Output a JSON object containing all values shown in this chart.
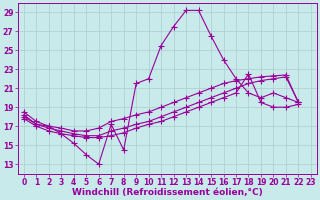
{
  "background_color": "#c8eaea",
  "grid_color": "#aacccc",
  "line_color": "#990099",
  "marker": "+",
  "markersize": 4,
  "linewidth": 0.8,
  "xlabel": "Windchill (Refroidissement éolien,°C)",
  "xlabel_fontsize": 6.5,
  "tick_fontsize": 5.5,
  "xlim": [
    -0.5,
    23.5
  ],
  "ylim": [
    12.0,
    30.0
  ],
  "yticks": [
    13,
    15,
    17,
    19,
    21,
    23,
    25,
    27,
    29
  ],
  "xticks": [
    0,
    1,
    2,
    3,
    4,
    5,
    6,
    7,
    8,
    9,
    10,
    11,
    12,
    13,
    14,
    15,
    16,
    17,
    18,
    19,
    20,
    21,
    22,
    23
  ],
  "s1_x": [
    0,
    1,
    2,
    3,
    4,
    5,
    6,
    7,
    8,
    9,
    10,
    11,
    12,
    13,
    14,
    15,
    16,
    17,
    18,
    19,
    20,
    21,
    22
  ],
  "s1_y": [
    18.5,
    17.5,
    17.0,
    16.2,
    15.2,
    14.0,
    13.0,
    17.2,
    14.5,
    21.5,
    22.0,
    25.5,
    27.5,
    29.2,
    29.2,
    26.5,
    24.0,
    22.0,
    20.5,
    20.0,
    20.5,
    20.0,
    19.5
  ],
  "s2_x": [
    0,
    1,
    2,
    3,
    4,
    5,
    6,
    7,
    8,
    9,
    10,
    11,
    12,
    13,
    14,
    15,
    16,
    17,
    18,
    19,
    20,
    21,
    22
  ],
  "s2_y": [
    18.2,
    17.2,
    17.0,
    16.8,
    16.5,
    16.5,
    16.8,
    17.5,
    17.8,
    18.2,
    18.5,
    19.0,
    19.5,
    20.0,
    20.5,
    21.0,
    21.5,
    21.8,
    22.0,
    22.2,
    22.3,
    22.4,
    19.5
  ],
  "s3_x": [
    0,
    1,
    2,
    3,
    4,
    5,
    6,
    7,
    8,
    9,
    10,
    11,
    12,
    13,
    14,
    15,
    16,
    17,
    18,
    19,
    20,
    21,
    22
  ],
  "s3_y": [
    18.0,
    17.2,
    16.8,
    16.5,
    16.2,
    16.0,
    16.0,
    16.5,
    16.8,
    17.2,
    17.5,
    18.0,
    18.5,
    19.0,
    19.5,
    20.0,
    20.5,
    21.0,
    21.5,
    21.8,
    22.0,
    22.2,
    19.5
  ],
  "s4_x": [
    0,
    1,
    2,
    3,
    4,
    5,
    6,
    7,
    8,
    9,
    10,
    11,
    12,
    13,
    14,
    15,
    16,
    17,
    18,
    19,
    20,
    21,
    22
  ],
  "s4_y": [
    17.8,
    17.0,
    16.5,
    16.2,
    16.0,
    15.8,
    15.8,
    16.0,
    16.3,
    16.8,
    17.2,
    17.5,
    18.0,
    18.5,
    19.0,
    19.5,
    20.0,
    20.5,
    22.5,
    19.5,
    19.0,
    19.0,
    19.3
  ]
}
